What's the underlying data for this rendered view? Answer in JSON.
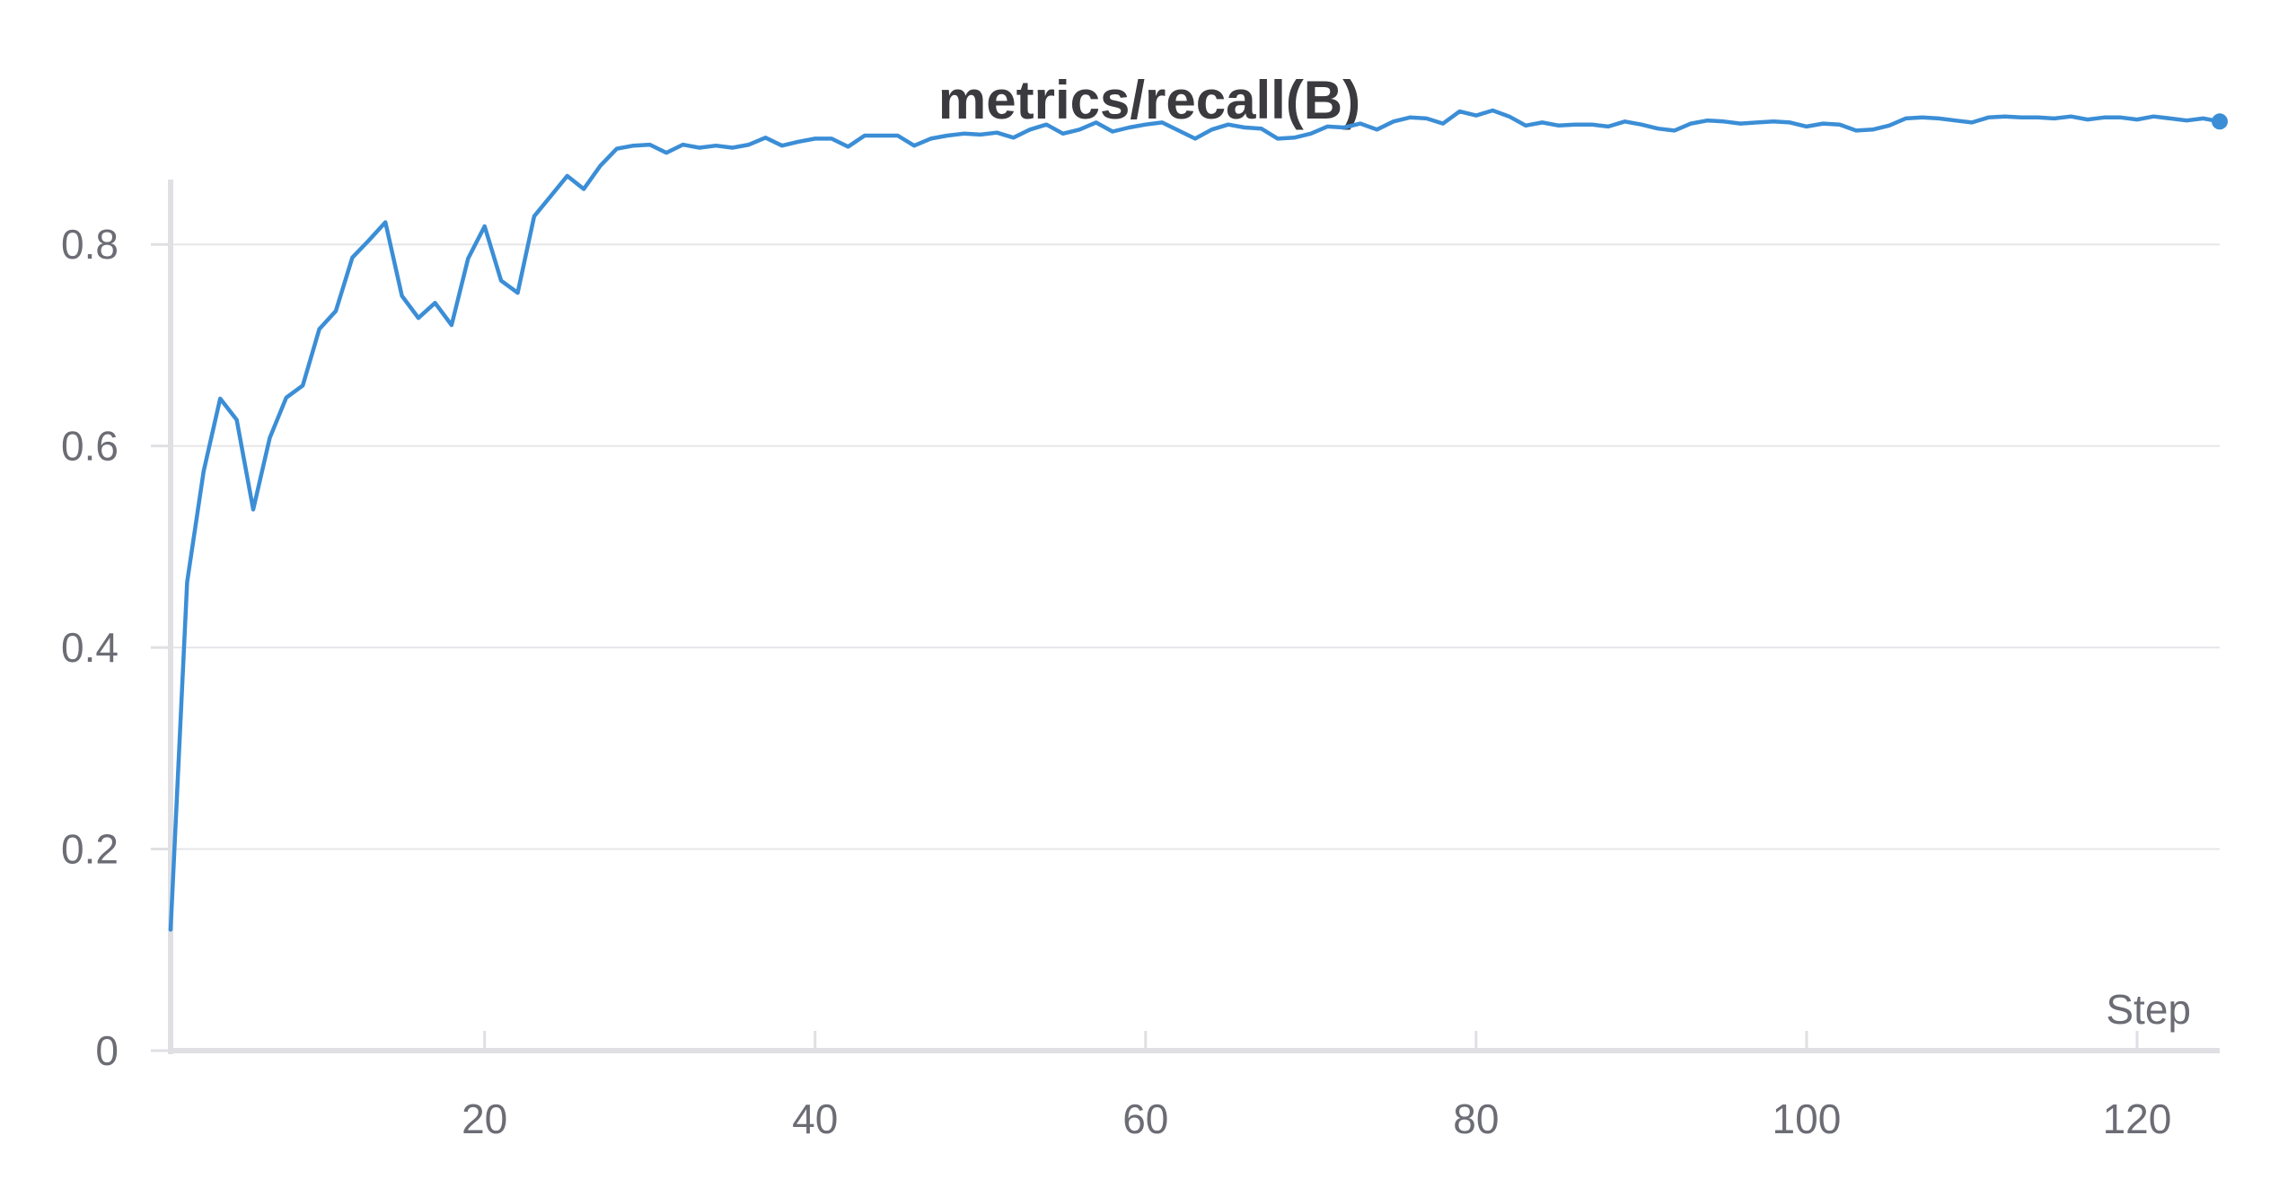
{
  "chart_data": {
    "type": "line",
    "title": "metrics/recall(B)",
    "xlabel": "Step",
    "ylabel": "",
    "xlim": [
      1,
      125
    ],
    "ylim": [
      0,
      0.9
    ],
    "xticks": [
      20,
      40,
      60,
      80,
      100,
      120
    ],
    "yticks": [
      0,
      0.2,
      0.4,
      0.6,
      0.8
    ],
    "ytick_labels": [
      "0",
      "0.2",
      "0.4",
      "0.6",
      "0.8"
    ],
    "grid": "horizontal",
    "series": [
      {
        "color": "#3b8ed6",
        "x": [
          1,
          2,
          3,
          4,
          5,
          6,
          7,
          8,
          9,
          10,
          11,
          12,
          13,
          14,
          15,
          16,
          17,
          18,
          19,
          20,
          21,
          22,
          23,
          24,
          25,
          26,
          27,
          28,
          29,
          30,
          31,
          32,
          33,
          34,
          35,
          36,
          37,
          38,
          39,
          40,
          41,
          42,
          43,
          44,
          45,
          46,
          47,
          48,
          49,
          50,
          51,
          52,
          53,
          54,
          55,
          56,
          57,
          58,
          59,
          60,
          61,
          62,
          63,
          64,
          65,
          66,
          67,
          68,
          69,
          70,
          71,
          72,
          73,
          74,
          75,
          76,
          77,
          78,
          79,
          80,
          81,
          82,
          83,
          84,
          85,
          86,
          87,
          88,
          89,
          90,
          91,
          92,
          93,
          94,
          95,
          96,
          97,
          98,
          99,
          100,
          101,
          102,
          103,
          104,
          105,
          106,
          107,
          108,
          109,
          110,
          111,
          112,
          113,
          114,
          115,
          116,
          117,
          118,
          119,
          120,
          121,
          122,
          123,
          124,
          125
        ],
        "y": [
          0.12,
          0.465,
          0.575,
          0.647,
          0.626,
          0.537,
          0.608,
          0.648,
          0.66,
          0.716,
          0.734,
          0.787,
          0.804,
          0.822,
          0.749,
          0.727,
          0.742,
          0.72,
          0.786,
          0.818,
          0.764,
          0.752,
          0.828,
          0.848,
          0.868,
          0.855,
          0.878,
          0.895,
          0.898,
          0.899,
          0.891,
          0.899,
          0.896,
          0.898,
          0.896,
          0.899,
          0.906,
          0.898,
          0.902,
          0.905,
          0.905,
          0.897,
          0.908,
          0.908,
          0.908,
          0.898,
          0.905,
          0.908,
          0.91,
          0.909,
          0.911,
          0.906,
          0.914,
          0.919,
          0.91,
          0.914,
          0.921,
          0.912,
          0.916,
          0.919,
          0.921,
          0.913,
          0.905,
          0.914,
          0.919,
          0.916,
          0.915,
          0.905,
          0.906,
          0.91,
          0.917,
          0.916,
          0.92,
          0.914,
          0.922,
          0.926,
          0.925,
          0.92,
          0.932,
          0.928,
          0.933,
          0.927,
          0.918,
          0.921,
          0.918,
          0.919,
          0.919,
          0.917,
          0.922,
          0.919,
          0.915,
          0.913,
          0.92,
          0.923,
          0.922,
          0.92,
          0.921,
          0.922,
          0.921,
          0.917,
          0.92,
          0.919,
          0.913,
          0.914,
          0.918,
          0.925,
          0.926,
          0.925,
          0.923,
          0.921,
          0.926,
          0.927,
          0.926,
          0.926,
          0.925,
          0.927,
          0.924,
          0.926,
          0.926,
          0.924,
          0.927,
          0.925,
          0.923,
          0.925,
          0.922
        ]
      }
    ]
  }
}
